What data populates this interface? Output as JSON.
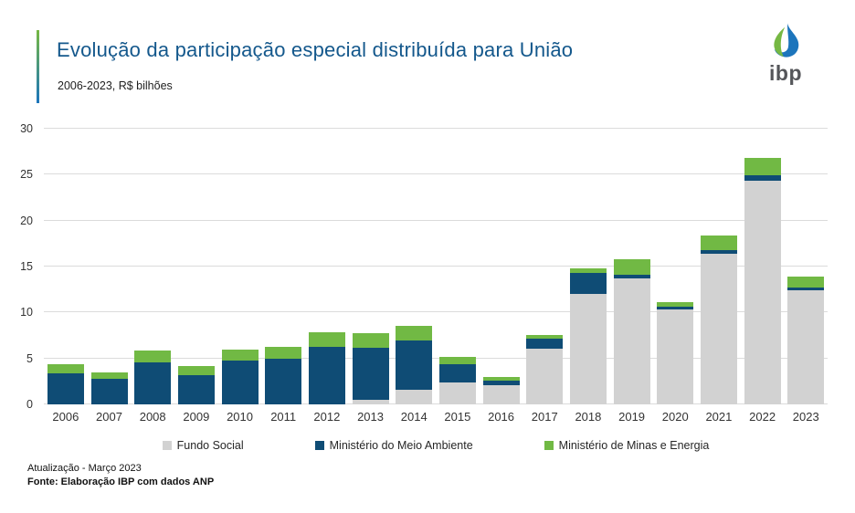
{
  "header": {
    "title": "Evolução da participação especial distribuída para União",
    "subtitle": "2006-2023, R$ bilhões"
  },
  "logo": {
    "text": "ibp"
  },
  "footer": {
    "line1": "Atualização - Março 2023",
    "line2": "Fonte: Elaboração IBP com dados ANP"
  },
  "colors": {
    "title_blue": "#14588C",
    "accent_green": "#76B843",
    "accent_blue": "#1C75BC",
    "fundo_social": "#D2D2D2",
    "meio_ambiente": "#0F4C75",
    "minas_energia": "#71B944",
    "gridline": "#DBDBDB",
    "axis_text": "#333333"
  },
  "chart_data": {
    "type": "bar",
    "stacked": true,
    "title": "Evolução da participação especial distribuída para União",
    "subtitle": "2006-2023, R$ bilhões",
    "xlabel": "",
    "ylabel": "R$ bilhões",
    "ylim": [
      0,
      30
    ],
    "yticks": [
      0,
      5,
      10,
      15,
      20,
      25,
      30
    ],
    "grid": true,
    "legend_position": "bottom",
    "categories": [
      "2006",
      "2007",
      "2008",
      "2009",
      "2010",
      "2011",
      "2012",
      "2013",
      "2014",
      "2015",
      "2016",
      "2017",
      "2018",
      "2019",
      "2020",
      "2021",
      "2022",
      "2023"
    ],
    "series": [
      {
        "name": "Fundo Social",
        "color": "#D2D2D2",
        "values": [
          0,
          0,
          0,
          0,
          0,
          0,
          0,
          0.5,
          1.6,
          2.4,
          2.1,
          6.05,
          12.0,
          13.7,
          10.3,
          16.4,
          24.35,
          12.4
        ]
      },
      {
        "name": "Ministério do Meio Ambiente",
        "color": "#0F4C75",
        "values": [
          3.4,
          2.8,
          4.6,
          3.2,
          4.75,
          5.0,
          6.3,
          5.7,
          5.4,
          2.0,
          0.5,
          1.1,
          2.35,
          0.45,
          0.3,
          0.4,
          0.6,
          0.3
        ]
      },
      {
        "name": "Ministério de Minas e Energia",
        "color": "#71B944",
        "values": [
          1.0,
          0.7,
          1.25,
          1.0,
          1.2,
          1.3,
          1.6,
          1.6,
          1.5,
          0.8,
          0.35,
          0.45,
          0.5,
          1.7,
          0.5,
          1.6,
          1.9,
          1.2
        ]
      }
    ]
  }
}
